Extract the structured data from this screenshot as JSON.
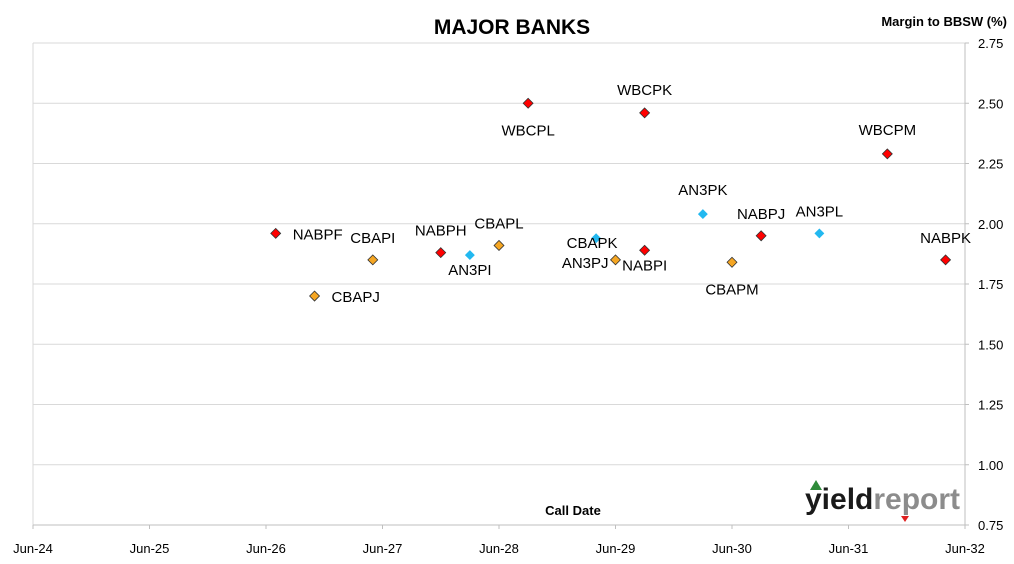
{
  "chart_data": {
    "type": "scatter",
    "title": "MAJOR BANKS",
    "xlabel": "Call Date",
    "ylabel": "Margin to BBSW (%)",
    "x_ticks": [
      "Jun-24",
      "Jun-25",
      "Jun-26",
      "Jun-27",
      "Jun-28",
      "Jun-29",
      "Jun-30",
      "Jun-31",
      "Jun-32"
    ],
    "x_range": [
      "Jun-24",
      "Jun-32"
    ],
    "ylim": [
      0.75,
      2.75
    ],
    "y_ticks": [
      "0.75",
      "1.00",
      "1.25",
      "1.50",
      "1.75",
      "2.00",
      "2.25",
      "2.50",
      "2.75"
    ],
    "grid": "horizontal",
    "points": [
      {
        "label": "NABPF",
        "x": "Jul-26",
        "y": 1.96,
        "color": "#ff0000"
      },
      {
        "label": "CBAPJ",
        "x": "Nov-26",
        "y": 1.7,
        "color": "#f5a623"
      },
      {
        "label": "CBAPI",
        "x": "May-27",
        "y": 1.85,
        "color": "#f5a623"
      },
      {
        "label": "NABPH",
        "x": "Dec-27",
        "y": 1.88,
        "color": "#ff0000"
      },
      {
        "label": "AN3PI",
        "x": "Mar-28",
        "y": 1.87,
        "color": "#22b8f0"
      },
      {
        "label": "CBAPL",
        "x": "Jun-28",
        "y": 1.91,
        "color": "#f5a623"
      },
      {
        "label": "WBCPL",
        "x": "Sep-28",
        "y": 2.5,
        "color": "#ff0000"
      },
      {
        "label": "CBAPK",
        "x": "Apr-29",
        "y": 1.94,
        "color": "#22b8f0"
      },
      {
        "label": "AN3PJ",
        "x": "Jun-29",
        "y": 1.85,
        "color": "#f5a623"
      },
      {
        "label": "NABPI",
        "x": "Sep-29",
        "y": 1.89,
        "color": "#ff0000"
      },
      {
        "label": "WBCPK",
        "x": "Sep-29",
        "y": 2.46,
        "color": "#ff0000"
      },
      {
        "label": "AN3PK",
        "x": "Mar-30",
        "y": 2.04,
        "color": "#22b8f0"
      },
      {
        "label": "CBAPM",
        "x": "Jun-30",
        "y": 1.84,
        "color": "#f5a623"
      },
      {
        "label": "NABPJ",
        "x": "Sep-30",
        "y": 1.95,
        "color": "#ff0000"
      },
      {
        "label": "AN3PL",
        "x": "Mar-31",
        "y": 1.96,
        "color": "#22b8f0"
      },
      {
        "label": "WBCPM",
        "x": "Oct-31",
        "y": 2.29,
        "color": "#ff0000"
      },
      {
        "label": "NABPK",
        "x": "Apr-32",
        "y": 1.85,
        "color": "#ff0000"
      }
    ]
  },
  "logo": {
    "text_a": "yield",
    "text_b": "report",
    "accent_up": "#2e8b3a",
    "accent_down": "#e02020"
  }
}
